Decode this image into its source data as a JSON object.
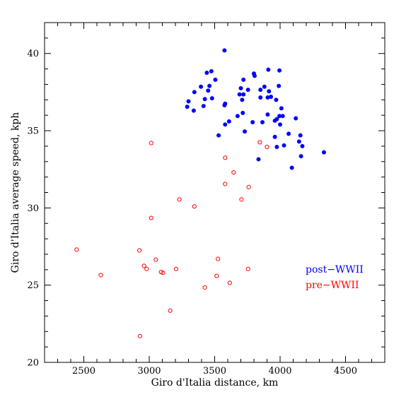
{
  "chart_data": {
    "type": "scatter",
    "title": "",
    "xlabel": "Giro d'Italia distance, km",
    "ylabel": "Giro d'Italia average speed, kph",
    "xlim": [
      2200,
      4800
    ],
    "ylim": [
      20,
      42
    ],
    "xticks": [
      "2500",
      "3000",
      "3500",
      "4000",
      "4500"
    ],
    "yticks": [
      "20",
      "25",
      "30",
      "35",
      "40"
    ],
    "grid": false,
    "legend_position": "lower-right",
    "series": [
      {
        "name": "post−WWII",
        "color": "#0000ff",
        "marker": "filled-circle",
        "points": [
          [
            3575,
            40.2
          ],
          [
            3910,
            38.95
          ],
          [
            3995,
            38.9
          ],
          [
            3800,
            38.7
          ],
          [
            3805,
            38.55
          ],
          [
            3440,
            38.75
          ],
          [
            3475,
            38.85
          ],
          [
            3505,
            38.3
          ],
          [
            3395,
            37.85
          ],
          [
            3460,
            37.9
          ],
          [
            3345,
            37.5
          ],
          [
            3450,
            37.6
          ],
          [
            3480,
            37.1
          ],
          [
            3425,
            37.05
          ],
          [
            3300,
            36.9
          ],
          [
            3290,
            36.55
          ],
          [
            3340,
            36.3
          ],
          [
            3415,
            36.6
          ],
          [
            3575,
            36.65
          ],
          [
            3580,
            36.75
          ],
          [
            3720,
            38.3
          ],
          [
            3755,
            37.65
          ],
          [
            3690,
            37.35
          ],
          [
            3700,
            37.75
          ],
          [
            3720,
            37.35
          ],
          [
            3710,
            37.0
          ],
          [
            3880,
            37.85
          ],
          [
            3850,
            37.65
          ],
          [
            3915,
            37.55
          ],
          [
            3850,
            37.15
          ],
          [
            3905,
            37.15
          ],
          [
            3990,
            37.9
          ],
          [
            3970,
            37.0
          ],
          [
            3930,
            37.2
          ],
          [
            4010,
            36.45
          ],
          [
            3675,
            35.95
          ],
          [
            3715,
            36.15
          ],
          [
            3905,
            36.05
          ],
          [
            3995,
            35.95
          ],
          [
            4020,
            35.95
          ],
          [
            3610,
            35.6
          ],
          [
            3580,
            35.4
          ],
          [
            3790,
            35.55
          ],
          [
            3865,
            35.55
          ],
          [
            3960,
            35.65
          ],
          [
            3975,
            35.75
          ],
          [
            4000,
            35.4
          ],
          [
            4120,
            35.8
          ],
          [
            3730,
            34.95
          ],
          [
            3530,
            34.7
          ],
          [
            3960,
            34.6
          ],
          [
            4065,
            34.8
          ],
          [
            4155,
            34.7
          ],
          [
            4145,
            34.3
          ],
          [
            4170,
            34.0
          ],
          [
            3975,
            33.95
          ],
          [
            4030,
            34.05
          ],
          [
            3835,
            33.15
          ],
          [
            4160,
            33.35
          ],
          [
            4335,
            33.6
          ],
          [
            4090,
            32.6
          ]
        ]
      },
      {
        "name": "pre−WWII",
        "color": "#ff0000",
        "marker": "open-circle",
        "points": [
          [
            3015,
            34.2
          ],
          [
            3845,
            34.25
          ],
          [
            3900,
            33.95
          ],
          [
            3580,
            33.25
          ],
          [
            3645,
            32.3
          ],
          [
            3580,
            31.55
          ],
          [
            3760,
            31.35
          ],
          [
            3230,
            30.55
          ],
          [
            3705,
            30.55
          ],
          [
            3345,
            30.1
          ],
          [
            3015,
            29.35
          ],
          [
            2445,
            27.3
          ],
          [
            2925,
            27.25
          ],
          [
            3050,
            26.65
          ],
          [
            3525,
            26.7
          ],
          [
            2960,
            26.25
          ],
          [
            2980,
            26.05
          ],
          [
            3090,
            25.85
          ],
          [
            3105,
            25.8
          ],
          [
            3205,
            26.05
          ],
          [
            3755,
            26.05
          ],
          [
            2630,
            25.65
          ],
          [
            3515,
            25.6
          ],
          [
            3425,
            24.85
          ],
          [
            3615,
            25.15
          ],
          [
            3160,
            23.35
          ],
          [
            2930,
            21.7
          ]
        ]
      }
    ]
  }
}
